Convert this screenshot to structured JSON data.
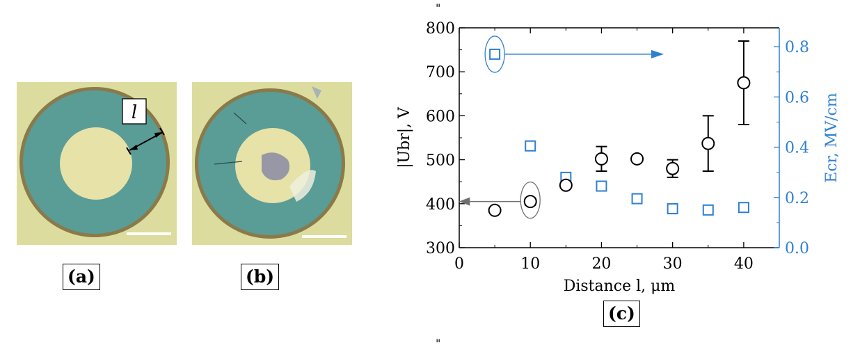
{
  "panels": {
    "a": "(a)",
    "b": "(b)",
    "c": "(c)",
    "length_symbol": "l"
  },
  "marks": {
    "top": "\"",
    "bottom": "\""
  },
  "colors": {
    "black_series": "#000000",
    "blue_series": "#2e7fd3",
    "grey_arrow": "#707070",
    "photo_background": "#dcdc9e",
    "photo_film": "#5a9c96",
    "photo_electrode": "#e6e2a8",
    "photo_rim": "#8a7a4a"
  },
  "chart_data": {
    "type": "scatter",
    "xlabel": "Distance l, μm",
    "ylabel_left": "|Ubr|, V",
    "ylabel_right": "Ecr, MV/cm",
    "xlim": [
      0,
      45
    ],
    "ylim_left": [
      300,
      800
    ],
    "ylim_right": [
      0.0,
      0.875
    ],
    "x_ticks": [
      0,
      10,
      20,
      30,
      40
    ],
    "y_left_ticks": [
      300,
      400,
      500,
      600,
      700,
      800
    ],
    "y_right_ticks": [
      "0.0",
      "0.2",
      "0.4",
      "0.6",
      "0.8"
    ],
    "grid": false,
    "series": [
      {
        "axis": "left",
        "marker": "circle",
        "x": [
          5,
          10,
          15,
          20,
          25,
          30,
          35,
          40
        ],
        "y": [
          385,
          405,
          442,
          502,
          502,
          480,
          537,
          675
        ],
        "err": [
          6,
          8,
          5,
          28,
          5,
          20,
          63,
          95
        ]
      },
      {
        "axis": "right",
        "marker": "square",
        "x": [
          5,
          10,
          15,
          20,
          25,
          30,
          35,
          40
        ],
        "y": [
          0.77,
          0.405,
          0.28,
          0.245,
          0.195,
          0.155,
          0.15,
          0.16
        ]
      }
    ]
  }
}
